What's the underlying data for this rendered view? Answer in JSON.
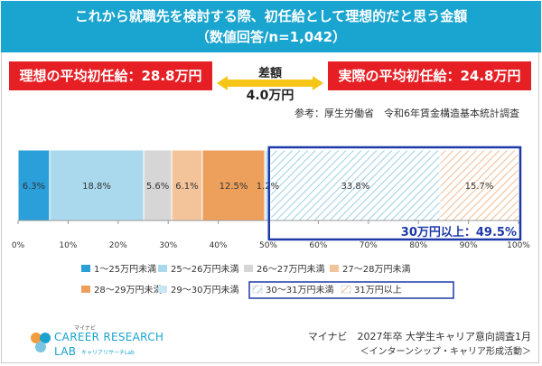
{
  "header": {
    "title": "これから就職先を検討する際、初任給として理想的だと思う金額",
    "subtitle": "（数値回答/n=1,042）"
  },
  "ideal": {
    "label": "理想の平均初任給：28.8万円"
  },
  "actual": {
    "label": "実際の平均初任給：24.8万円"
  },
  "difference": {
    "title": "差額",
    "value": "4.0万円"
  },
  "source_note": "参考：厚生労働省　令和6年賃金構造基本統計調査",
  "highlight": {
    "label": "30万円以上：49.5%",
    "color": "#1f3aa8"
  },
  "footer": {
    "line1": "マイナビ　2027年卒 大学生キャリア意向調査1月",
    "line2": "＜インターンシップ・キャリア形成活動＞"
  },
  "logo": {
    "small": "マイナビ",
    "line1": "CAREER RESEARCH",
    "line2": "LAB",
    "sub": "キャリアリサーチLab"
  },
  "colors": {
    "accent": "#19a5cf",
    "warning": "#e61f25",
    "arrow": "#f5c518"
  },
  "chart_data": {
    "type": "bar",
    "orientation": "horizontal",
    "stacked": true,
    "xlim": [
      0,
      100
    ],
    "xticks": [
      "0%",
      "10%",
      "20%",
      "30%",
      "40%",
      "50%",
      "60%",
      "70%",
      "80%",
      "90%",
      "100%"
    ],
    "grid": false,
    "legend_position": "bottom",
    "series": [
      {
        "name": "1～25万円未満",
        "value": 6.3,
        "label": "6.3%",
        "color": "#2a9fd9",
        "pattern": "solid"
      },
      {
        "name": "25～26万円未満",
        "value": 18.8,
        "label": "18.8%",
        "color": "#aad9ee",
        "pattern": "solid"
      },
      {
        "name": "26～27万円未満",
        "value": 5.6,
        "label": "5.6%",
        "color": "#d6d6d6",
        "pattern": "solid"
      },
      {
        "name": "27～28万円未満",
        "value": 6.1,
        "label": "6.1%",
        "color": "#f3c49a",
        "pattern": "solid"
      },
      {
        "name": "28～29万円未満",
        "value": 12.5,
        "label": "12.5%",
        "color": "#eda05c",
        "pattern": "solid"
      },
      {
        "name": "29～30万円未満",
        "value": 1.2,
        "label": "1.2%",
        "color": "#c8e7f4",
        "pattern": "solid"
      },
      {
        "name": "30～31万円未満",
        "value": 33.8,
        "label": "33.8%",
        "color": "#a9d5e6",
        "pattern": "hatch"
      },
      {
        "name": "31万円以上",
        "value": 15.7,
        "label": "15.7%",
        "color": "#f3c49a",
        "pattern": "hatch"
      }
    ]
  }
}
